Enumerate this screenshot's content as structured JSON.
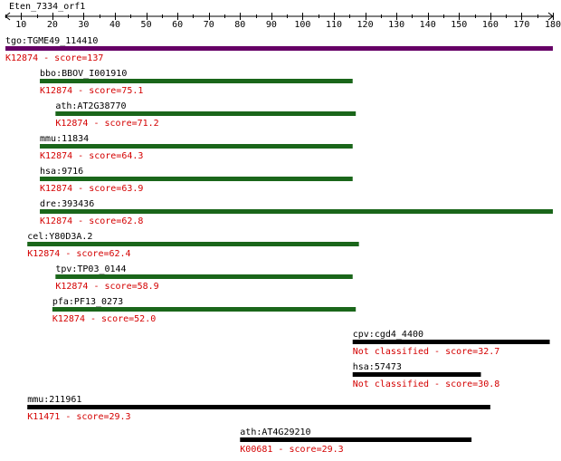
{
  "title": "Eten_7334_orf1",
  "axis": {
    "min": 5,
    "max": 180,
    "major_step": 10,
    "minor_step": 5,
    "tick_labels": [
      "10",
      "20",
      "30",
      "40",
      "50",
      "60",
      "70",
      "80",
      "90",
      "100",
      "110",
      "120",
      "130",
      "140",
      "150",
      "160",
      "170",
      "180"
    ]
  },
  "colors": {
    "purple": "#660066",
    "green": "#1a661a",
    "black": "#000000",
    "score_text": "#d40000"
  },
  "hits": [
    {
      "name": "tgo:TGME49_114410",
      "score_label": "K12874 - score=137",
      "start": 5,
      "end": 180,
      "color": "purple"
    },
    {
      "name": "bbo:BBOV_I001910",
      "score_label": "K12874 - score=75.1",
      "start": 16,
      "end": 116,
      "color": "green"
    },
    {
      "name": "ath:AT2G38770",
      "score_label": "K12874 - score=71.2",
      "start": 21,
      "end": 117,
      "color": "green"
    },
    {
      "name": "mmu:11834",
      "score_label": "K12874 - score=64.3",
      "start": 16,
      "end": 116,
      "color": "green"
    },
    {
      "name": "hsa:9716",
      "score_label": "K12874 - score=63.9",
      "start": 16,
      "end": 116,
      "color": "green"
    },
    {
      "name": "dre:393436",
      "score_label": "K12874 - score=62.8",
      "start": 16,
      "end": 180,
      "color": "green"
    },
    {
      "name": "cel:Y80D3A.2",
      "score_label": "K12874 - score=62.4",
      "start": 12,
      "end": 118,
      "color": "green"
    },
    {
      "name": "tpv:TP03_0144",
      "score_label": "K12874 - score=58.9",
      "start": 21,
      "end": 116,
      "color": "green"
    },
    {
      "name": "pfa:PF13_0273",
      "score_label": "K12874 - score=52.0",
      "start": 20,
      "end": 117,
      "color": "green"
    },
    {
      "name": "cpv:cgd4_4400",
      "score_label": "Not classified - score=32.7",
      "start": 116,
      "end": 179,
      "color": "black"
    },
    {
      "name": "hsa:57473",
      "score_label": "Not classified - score=30.8",
      "start": 116,
      "end": 157,
      "color": "black"
    },
    {
      "name": "mmu:211961",
      "score_label": "K11471 - score=29.3",
      "start": 12,
      "end": 160,
      "color": "black"
    },
    {
      "name": "ath:AT4G29210",
      "score_label": "K00681 - score=29.3",
      "start": 80,
      "end": 154,
      "color": "black"
    }
  ]
}
